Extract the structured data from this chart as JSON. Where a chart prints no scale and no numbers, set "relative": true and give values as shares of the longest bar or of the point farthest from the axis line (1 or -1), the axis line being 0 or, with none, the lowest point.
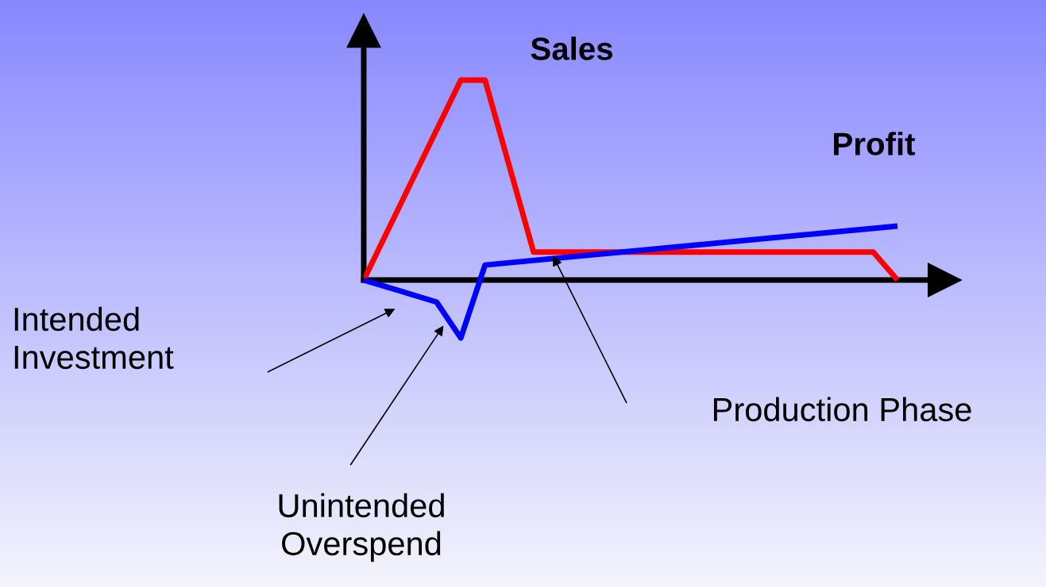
{
  "chart_data": {
    "type": "line",
    "relative": true,
    "categories": [
      null,
      null,
      null,
      null,
      null,
      null,
      null,
      null,
      null,
      null,
      null,
      null,
      null,
      null,
      null,
      null,
      null,
      null,
      null,
      null,
      null,
      null,
      null
    ],
    "series": [
      {
        "name": "Sales",
        "color": "#ff0000",
        "values": [
          0,
          null,
          null,
          null,
          1.0,
          1.0,
          null,
          0.14,
          null,
          null,
          null,
          null,
          null,
          null,
          null,
          null,
          null,
          null,
          null,
          null,
          null,
          0.14,
          0
        ]
      },
      {
        "name": "Profit",
        "color": "#0000ff",
        "values": [
          0,
          null,
          null,
          -0.11,
          -0.29,
          0.075,
          null,
          null,
          null,
          null,
          null,
          null,
          null,
          null,
          null,
          null,
          null,
          null,
          null,
          null,
          null,
          null,
          0.27
        ]
      }
    ],
    "legend": false,
    "marker": "none",
    "line_style": "solid",
    "annotations": [
      "Intended\nInvestment",
      "Unintended\nOverspend",
      "Production Phase"
    ]
  }
}
